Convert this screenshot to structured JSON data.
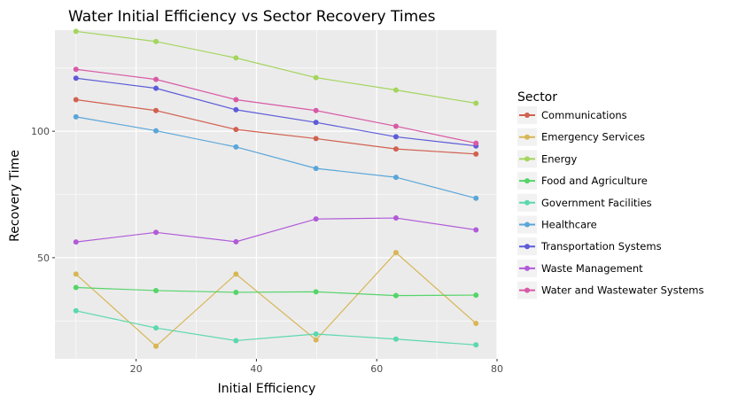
{
  "chart_data": {
    "type": "line",
    "title": "Water Initial Efficiency vs Sector Recovery Times",
    "xlabel": "Initial Efficiency",
    "ylabel": "Recovery Time",
    "xlim": [
      6.5,
      80
    ],
    "ylim": [
      10,
      140
    ],
    "x_ticks": [
      20,
      40,
      60,
      80
    ],
    "y_ticks": [
      50,
      100
    ],
    "x_tick_labels": [
      "20",
      "40",
      "60",
      "80"
    ],
    "y_tick_labels": [
      "50",
      "100"
    ],
    "grid": true,
    "legend_position": "right",
    "legend_title": "Sector",
    "x": [
      10,
      23.3,
      36.6,
      49.9,
      63.2,
      76.5
    ],
    "series": [
      {
        "name": "Communications",
        "color": "#d16150",
        "values": [
          112.5,
          108.2,
          100.7,
          97.1,
          93.0,
          91.0
        ]
      },
      {
        "name": "Emergency Services",
        "color": "#d8b656",
        "values": [
          43.5,
          15.0,
          43.5,
          17.5,
          52.0,
          24.0
        ]
      },
      {
        "name": "Energy",
        "color": "#a3d55d",
        "values": [
          139.5,
          135.5,
          129.0,
          121.2,
          116.3,
          111.1
        ]
      },
      {
        "name": "Food and Agriculture",
        "color": "#55d46a",
        "values": [
          38.2,
          37.0,
          36.3,
          36.5,
          35.0,
          35.2
        ]
      },
      {
        "name": "Government Facilities",
        "color": "#5bd8ad",
        "values": [
          29.0,
          22.2,
          17.2,
          19.8,
          17.8,
          15.5
        ]
      },
      {
        "name": "Healthcare",
        "color": "#5aa6d8",
        "values": [
          105.7,
          100.2,
          93.8,
          85.3,
          81.8,
          73.5
        ]
      },
      {
        "name": "Transportation Systems",
        "color": "#5d5bd8",
        "values": [
          121.0,
          117.0,
          108.5,
          103.5,
          97.8,
          94.2
        ]
      },
      {
        "name": "Waste Management",
        "color": "#b05bd8",
        "values": [
          56.2,
          60.0,
          56.3,
          65.3,
          65.7,
          61.0
        ]
      },
      {
        "name": "Water and Wastewater Systems",
        "color": "#d85aa6",
        "values": [
          124.5,
          120.5,
          112.5,
          108.2,
          102.0,
          95.3
        ]
      }
    ]
  }
}
